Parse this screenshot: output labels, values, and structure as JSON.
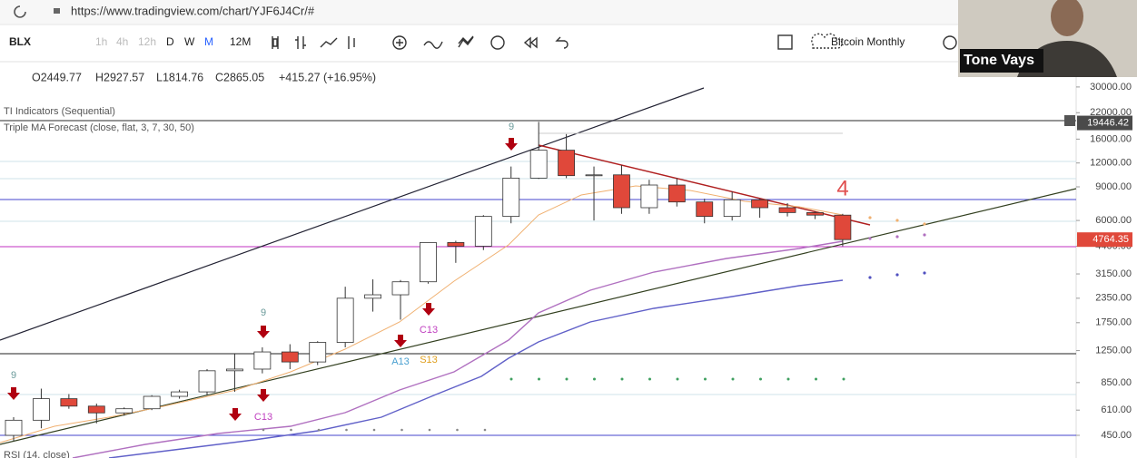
{
  "browser": {
    "url": "https://www.tradingview.com/chart/YJF6J4Cr/#"
  },
  "toolbar": {
    "symbol": "BLX",
    "intervals": [
      "1h",
      "4h",
      "12h",
      "D",
      "W",
      "M",
      "12M"
    ],
    "layout_name": "Bitcoin Monthly"
  },
  "legend": {
    "ohlc": [
      "O2449.77",
      "H2927.57",
      "L1814.76",
      "C2865.05",
      "+415.27 (+16.95%)"
    ],
    "indicators": [
      "TI Indicators (Sequential)",
      "Triple MA Forecast (close, flat, 3, 7, 30, 50)",
      "RSI (14, close)"
    ]
  },
  "webcam": {
    "name": "Tone Vays"
  },
  "chart_data": {
    "type": "candlestick",
    "log_scale": true,
    "ylim": [
      350,
      32000
    ],
    "yticks": [
      {
        "value": 450,
        "label": "450.00"
      },
      {
        "value": 610,
        "label": "610.00"
      },
      {
        "value": 850,
        "label": "850.00"
      },
      {
        "value": 1250,
        "label": "1250.00"
      },
      {
        "value": 1750,
        "label": "1750.00"
      },
      {
        "value": 2350,
        "label": "2350.00"
      },
      {
        "value": 3150,
        "label": "3150.00"
      },
      {
        "value": 4400,
        "label": "4400.00"
      },
      {
        "value": 6000,
        "label": "6000.00"
      },
      {
        "value": 9000,
        "label": "9000.00"
      },
      {
        "value": 12000,
        "label": "12000.00"
      },
      {
        "value": 16000,
        "label": "16000.00"
      },
      {
        "value": 22000,
        "label": "22000.00"
      },
      {
        "value": 30000,
        "label": "30000.00"
      }
    ],
    "up_color": "#ffffff",
    "down_color": "#e0483a",
    "candles": [
      {
        "open": 450,
        "high": 560,
        "low": 420,
        "close": 540
      },
      {
        "open": 540,
        "high": 790,
        "low": 490,
        "close": 700
      },
      {
        "open": 700,
        "high": 740,
        "low": 620,
        "close": 640
      },
      {
        "open": 640,
        "high": 660,
        "low": 520,
        "close": 590
      },
      {
        "open": 590,
        "high": 630,
        "low": 570,
        "close": 620
      },
      {
        "open": 620,
        "high": 730,
        "low": 610,
        "close": 720
      },
      {
        "open": 720,
        "high": 780,
        "low": 700,
        "close": 760
      },
      {
        "open": 760,
        "high": 1000,
        "low": 730,
        "close": 980
      },
      {
        "open": 980,
        "high": 1200,
        "low": 760,
        "close": 1000
      },
      {
        "open": 1000,
        "high": 1300,
        "low": 950,
        "close": 1230
      },
      {
        "open": 1230,
        "high": 1350,
        "low": 1000,
        "close": 1090
      },
      {
        "open": 1090,
        "high": 1400,
        "low": 1050,
        "close": 1380
      },
      {
        "open": 1380,
        "high": 2700,
        "low": 1300,
        "close": 2350
      },
      {
        "open": 2350,
        "high": 2950,
        "low": 2000,
        "close": 2449.77
      },
      {
        "open": 2449.77,
        "high": 2927.57,
        "low": 1814.76,
        "close": 2865.05
      },
      {
        "open": 2865.05,
        "high": 4600,
        "low": 2800,
        "close": 4600
      },
      {
        "open": 4600,
        "high": 4700,
        "low": 3600,
        "close": 4400
      },
      {
        "open": 4400,
        "high": 6400,
        "low": 4200,
        "close": 6300
      },
      {
        "open": 6300,
        "high": 11500,
        "low": 5800,
        "close": 10000
      },
      {
        "open": 10000,
        "high": 19700,
        "low": 9900,
        "close": 14000
      },
      {
        "open": 14000,
        "high": 17000,
        "low": 10000,
        "close": 10300
      },
      {
        "open": 10300,
        "high": 11500,
        "low": 6000,
        "close": 10400
      },
      {
        "open": 10400,
        "high": 11700,
        "low": 6500,
        "close": 7000
      },
      {
        "open": 7000,
        "high": 9800,
        "low": 6500,
        "close": 9200
      },
      {
        "open": 9200,
        "high": 10000,
        "low": 7100,
        "close": 7500
      },
      {
        "open": 7500,
        "high": 7800,
        "low": 5800,
        "close": 6300
      },
      {
        "open": 6300,
        "high": 8500,
        "low": 6000,
        "close": 7700
      },
      {
        "open": 7700,
        "high": 7800,
        "low": 6200,
        "close": 7000
      },
      {
        "open": 7000,
        "high": 7400,
        "low": 6300,
        "close": 6600
      },
      {
        "open": 6600,
        "high": 6700,
        "low": 6100,
        "close": 6400
      },
      {
        "open": 6400,
        "high": 6500,
        "low": 4400,
        "close": 4764.35
      }
    ],
    "price_markers": [
      {
        "value": 19446.42,
        "color": "#4a4a4a"
      },
      {
        "value": 4764.35,
        "color": "#e0483a"
      }
    ],
    "annotations": [
      {
        "text": "9",
        "color": "#6a9a9a"
      },
      {
        "text": "9",
        "color": "#6a9a9a"
      },
      {
        "text": "9",
        "color": "#6a9a9a"
      },
      {
        "text": "C13",
        "color": "#c040c0"
      },
      {
        "text": "C13",
        "color": "#c040c0"
      },
      {
        "text": "A13",
        "color": "#4aa0d0"
      },
      {
        "text": "S13",
        "color": "#e0a020"
      },
      {
        "text": "4",
        "color": "#e05050"
      }
    ]
  }
}
